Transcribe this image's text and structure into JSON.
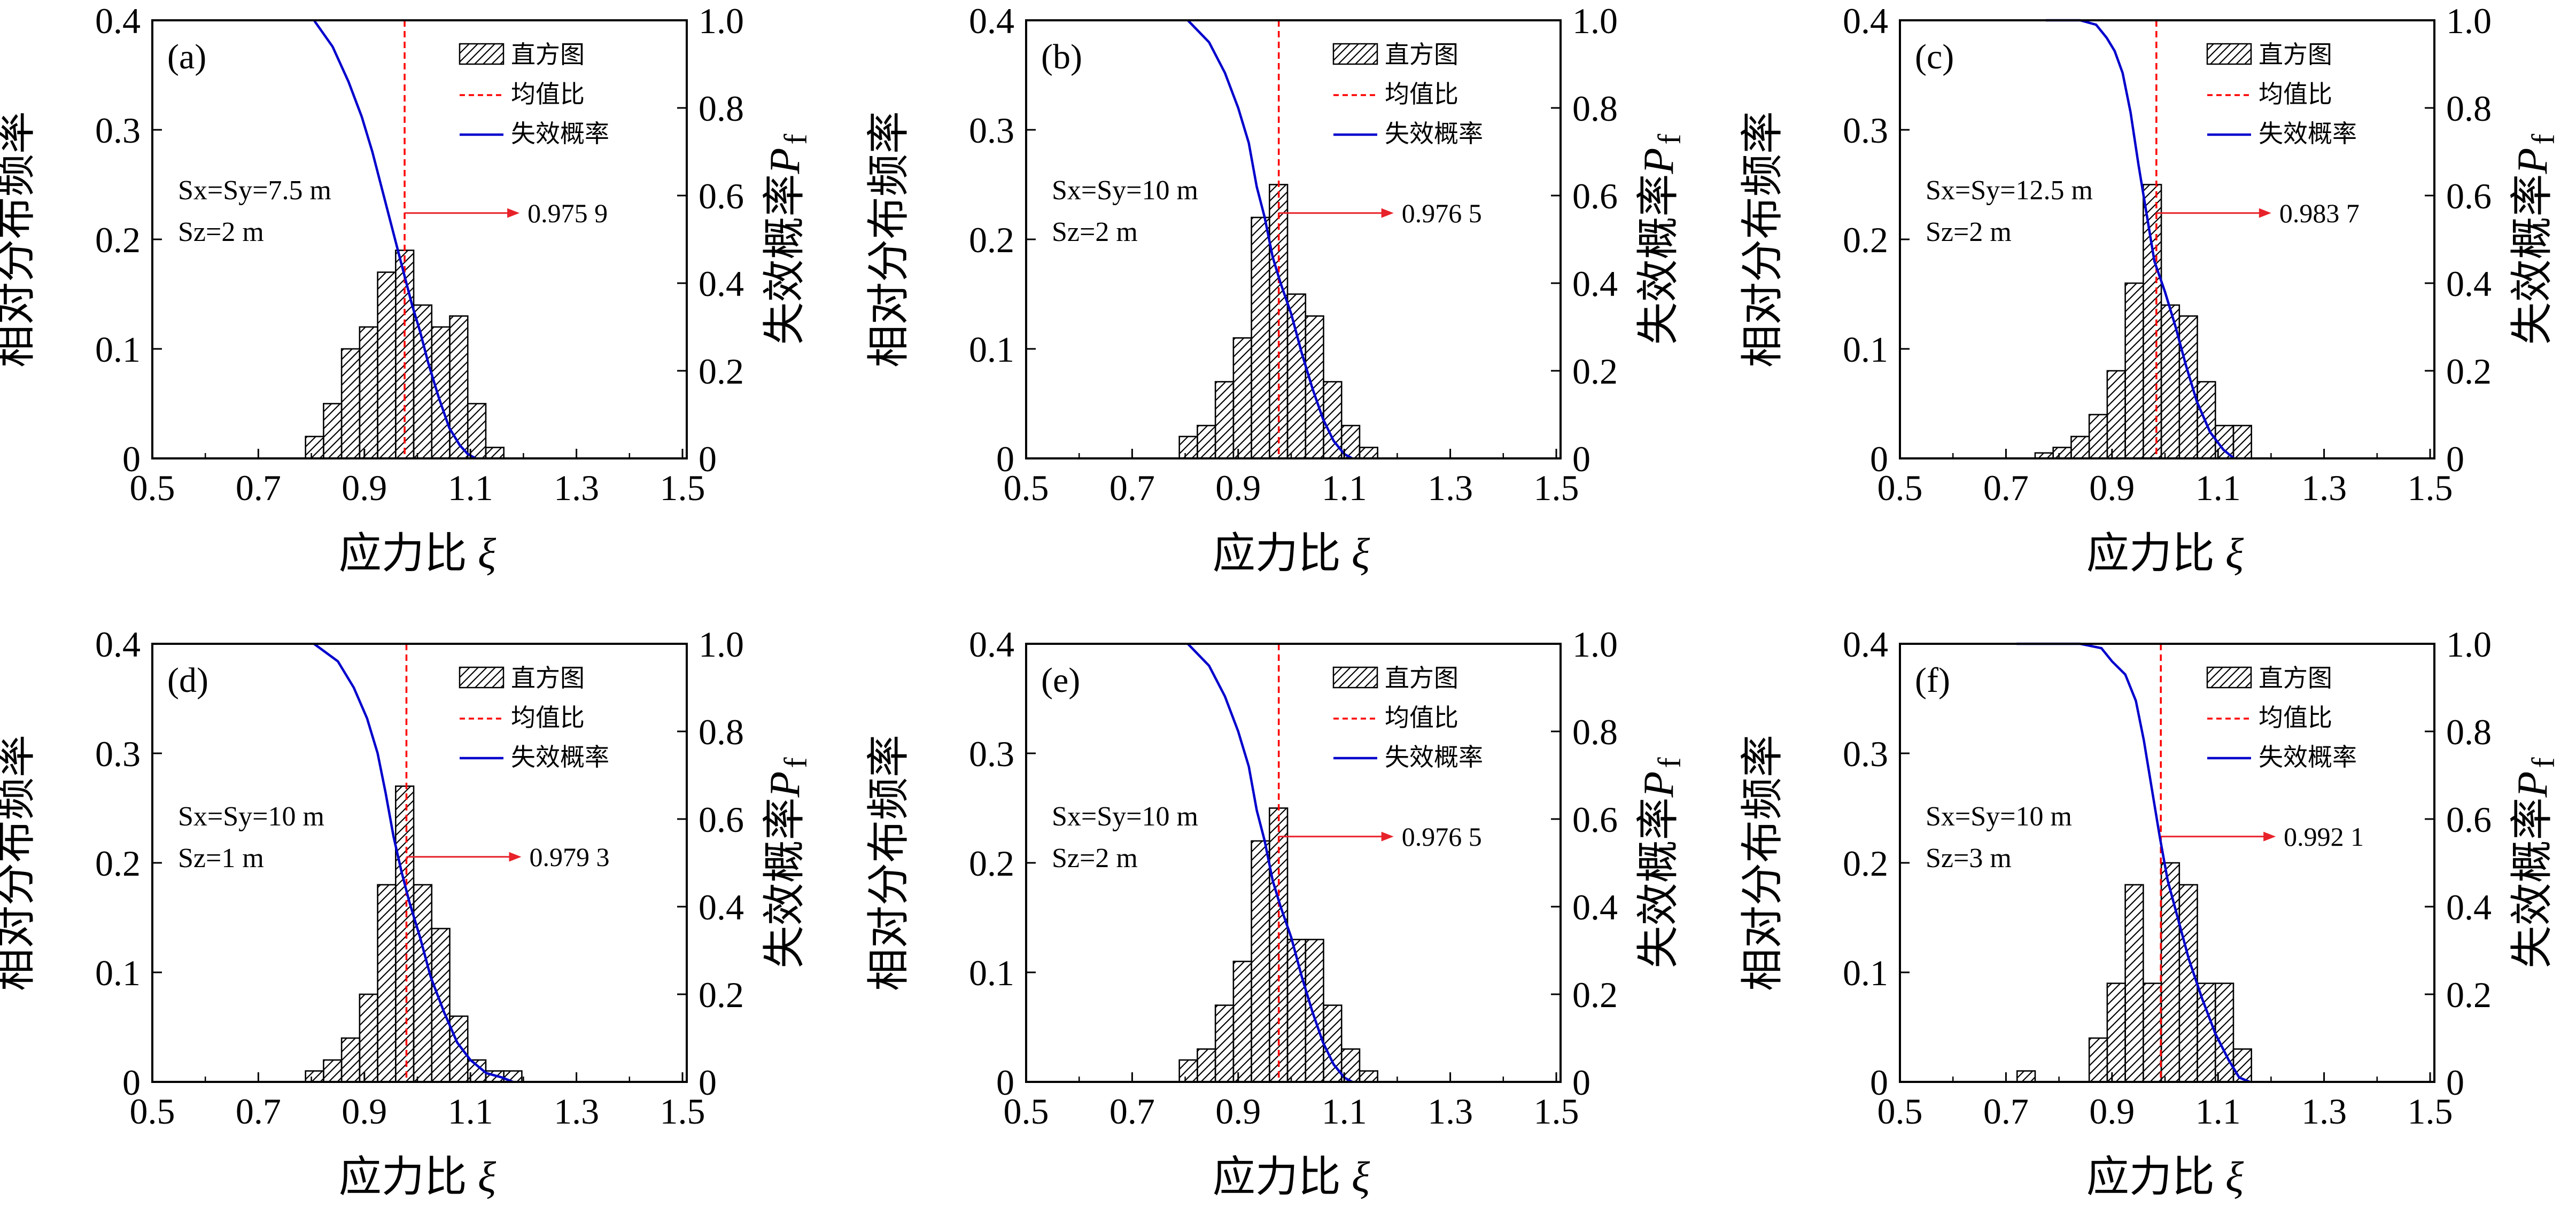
{
  "legend_labels": {
    "hist": "直方图",
    "mean": "均值比",
    "pf": "失效概率"
  },
  "axis_titles": {
    "x": "应力比",
    "x_symbol": "ξ",
    "y_left": "相对分布频率",
    "y_right": "失效概率",
    "y_right_symbol": "P",
    "y_right_sub": "f"
  },
  "x_ticks": [
    "0.5",
    "0.7",
    "0.9",
    "1.1",
    "1.3",
    "1.5"
  ],
  "y_left_ticks": [
    "0",
    "0.1",
    "0.2",
    "0.3",
    "0.4"
  ],
  "y_right_ticks": [
    "0",
    "0.2",
    "0.4",
    "0.6",
    "0.8",
    "1.0"
  ],
  "colors": {
    "hist_edge": "#000000",
    "mean_line": "#ff0000",
    "pf_line": "#0000cc",
    "arrow": "#e8222a"
  },
  "chart_data": [
    {
      "type": "bar",
      "panel": "(a)",
      "param_lines": [
        {
          "text": "Sx=Sy=7.5 m"
        },
        {
          "text": "Sz=2 m"
        }
      ],
      "mean_label": "0.975 9",
      "mean": 0.9759,
      "xlim": [
        0.5,
        1.5
      ],
      "ylim_left": [
        0,
        0.4
      ],
      "ylim_right": [
        0,
        1.0
      ],
      "bin_width": 0.034,
      "bin_starts": [
        0.789,
        0.823,
        0.857,
        0.891,
        0.925,
        0.959,
        0.993,
        1.027,
        1.061,
        1.095,
        1.129
      ],
      "frequencies": [
        0.02,
        0.05,
        0.1,
        0.12,
        0.17,
        0.19,
        0.14,
        0.12,
        0.13,
        0.05,
        0.01
      ],
      "pf_curve": {
        "x": [
          0.805,
          0.84,
          0.87,
          0.895,
          0.915,
          0.93,
          0.945,
          0.96,
          0.975,
          0.99,
          1.005,
          1.02,
          1.04,
          1.06,
          1.08,
          1.095,
          1.11
        ],
        "y": [
          1.0,
          0.94,
          0.86,
          0.78,
          0.7,
          0.63,
          0.56,
          0.49,
          0.42,
          0.35,
          0.29,
          0.22,
          0.14,
          0.07,
          0.03,
          0.01,
          0.0
        ]
      }
    },
    {
      "type": "bar",
      "panel": "(b)",
      "param_lines": [
        {
          "text": "Sx=Sy=10 m"
        },
        {
          "text": "Sz=2 m"
        }
      ],
      "mean_label": "0.976 5",
      "mean": 0.9765,
      "xlim": [
        0.5,
        1.5
      ],
      "ylim_left": [
        0,
        0.4
      ],
      "ylim_right": [
        0,
        1.0
      ],
      "bin_width": 0.034,
      "bin_starts": [
        0.789,
        0.823,
        0.857,
        0.891,
        0.925,
        0.959,
        0.993,
        1.027,
        1.061,
        1.095,
        1.129
      ],
      "frequencies": [
        0.02,
        0.03,
        0.07,
        0.11,
        0.22,
        0.25,
        0.15,
        0.13,
        0.07,
        0.03,
        0.01
      ],
      "pf_curve": {
        "x": [
          0.805,
          0.845,
          0.875,
          0.9,
          0.92,
          0.935,
          0.95,
          0.965,
          0.98,
          1.0,
          1.02,
          1.04,
          1.06,
          1.08,
          1.1,
          1.115
        ],
        "y": [
          1.0,
          0.95,
          0.88,
          0.8,
          0.72,
          0.62,
          0.55,
          0.46,
          0.4,
          0.33,
          0.24,
          0.16,
          0.09,
          0.04,
          0.01,
          0.0
        ]
      }
    },
    {
      "type": "bar",
      "panel": "(c)",
      "param_lines": [
        {
          "text": "Sx=Sy=12.5 m"
        },
        {
          "text": "Sz=2 m"
        }
      ],
      "mean_label": "0.983 7",
      "mean": 0.9837,
      "xlim": [
        0.5,
        1.5
      ],
      "ylim_left": [
        0,
        0.4
      ],
      "ylim_right": [
        0,
        1.0
      ],
      "bin_width": 0.034,
      "bin_starts": [
        0.755,
        0.789,
        0.823,
        0.857,
        0.891,
        0.925,
        0.959,
        0.993,
        1.027,
        1.061,
        1.095,
        1.129
      ],
      "frequencies": [
        0.005,
        0.01,
        0.02,
        0.04,
        0.08,
        0.16,
        0.25,
        0.14,
        0.13,
        0.07,
        0.03,
        0.03
      ],
      "pf_curve": {
        "x": [
          0.775,
          0.84,
          0.87,
          0.89,
          0.905,
          0.92,
          0.935,
          0.95,
          0.965,
          0.98,
          1.0,
          1.02,
          1.04,
          1.06,
          1.085,
          1.11,
          1.13
        ],
        "y": [
          1.0,
          1.0,
          0.99,
          0.96,
          0.93,
          0.88,
          0.79,
          0.67,
          0.56,
          0.45,
          0.38,
          0.3,
          0.21,
          0.13,
          0.06,
          0.02,
          0.0
        ]
      }
    },
    {
      "type": "bar",
      "panel": "(d)",
      "param_lines": [
        {
          "text": "Sx=Sy=10 m"
        },
        {
          "text": "Sz=1 m"
        }
      ],
      "mean_label": "0.979 3",
      "mean": 0.9793,
      "xlim": [
        0.5,
        1.5
      ],
      "ylim_left": [
        0,
        0.4
      ],
      "ylim_right": [
        0,
        1.0
      ],
      "bin_width": 0.034,
      "bin_starts": [
        0.789,
        0.823,
        0.857,
        0.891,
        0.925,
        0.959,
        0.993,
        1.027,
        1.061,
        1.095,
        1.129,
        1.163
      ],
      "frequencies": [
        0.01,
        0.02,
        0.04,
        0.08,
        0.18,
        0.27,
        0.18,
        0.14,
        0.06,
        0.02,
        0.01,
        0.01
      ],
      "pf_curve": {
        "x": [
          0.805,
          0.85,
          0.88,
          0.905,
          0.925,
          0.94,
          0.955,
          0.97,
          0.985,
          1.005,
          1.025,
          1.05,
          1.075,
          1.1,
          1.13,
          1.16,
          1.18
        ],
        "y": [
          1.0,
          0.96,
          0.9,
          0.83,
          0.75,
          0.66,
          0.56,
          0.48,
          0.41,
          0.33,
          0.24,
          0.16,
          0.09,
          0.05,
          0.02,
          0.01,
          0.0
        ]
      }
    },
    {
      "type": "bar",
      "panel": "(e)",
      "param_lines": [
        {
          "text": "Sx=Sy=10 m"
        },
        {
          "text": "Sz=2 m"
        }
      ],
      "mean_label": "0.976 5",
      "mean": 0.9765,
      "xlim": [
        0.5,
        1.5
      ],
      "ylim_left": [
        0,
        0.4
      ],
      "ylim_right": [
        0,
        1.0
      ],
      "bin_width": 0.034,
      "bin_starts": [
        0.789,
        0.823,
        0.857,
        0.891,
        0.925,
        0.959,
        0.993,
        1.027,
        1.061,
        1.095,
        1.129
      ],
      "frequencies": [
        0.02,
        0.03,
        0.07,
        0.11,
        0.22,
        0.25,
        0.13,
        0.13,
        0.07,
        0.03,
        0.01
      ],
      "pf_curve": {
        "x": [
          0.805,
          0.845,
          0.875,
          0.9,
          0.92,
          0.935,
          0.95,
          0.965,
          0.98,
          1.0,
          1.02,
          1.04,
          1.06,
          1.08,
          1.1,
          1.115
        ],
        "y": [
          1.0,
          0.95,
          0.88,
          0.8,
          0.72,
          0.62,
          0.55,
          0.46,
          0.4,
          0.33,
          0.24,
          0.16,
          0.09,
          0.04,
          0.01,
          0.0
        ]
      }
    },
    {
      "type": "bar",
      "panel": "(f)",
      "param_lines": [
        {
          "text": "Sx=Sy=10 m"
        },
        {
          "text": "Sz=3 m"
        }
      ],
      "mean_label": "0.992 1",
      "mean": 0.9921,
      "xlim": [
        0.5,
        1.5
      ],
      "ylim_left": [
        0,
        0.4
      ],
      "ylim_right": [
        0,
        1.0
      ],
      "bin_width": 0.034,
      "bin_starts": [
        0.721,
        0.755,
        0.789,
        0.823,
        0.857,
        0.891,
        0.925,
        0.959,
        0.993,
        1.027,
        1.061,
        1.095,
        1.129
      ],
      "frequencies": [
        0.01,
        0.0,
        0.0,
        0.0,
        0.04,
        0.09,
        0.18,
        0.09,
        0.2,
        0.18,
        0.09,
        0.09,
        0.03
      ],
      "pf_curve": {
        "x": [
          0.72,
          0.84,
          0.88,
          0.9,
          0.925,
          0.945,
          0.96,
          0.975,
          0.99,
          1.005,
          1.025,
          1.045,
          1.07,
          1.095,
          1.12,
          1.14,
          1.16
        ],
        "y": [
          1.0,
          1.0,
          0.99,
          0.96,
          0.93,
          0.87,
          0.78,
          0.67,
          0.56,
          0.46,
          0.37,
          0.28,
          0.19,
          0.11,
          0.05,
          0.01,
          0.0
        ]
      }
    }
  ]
}
